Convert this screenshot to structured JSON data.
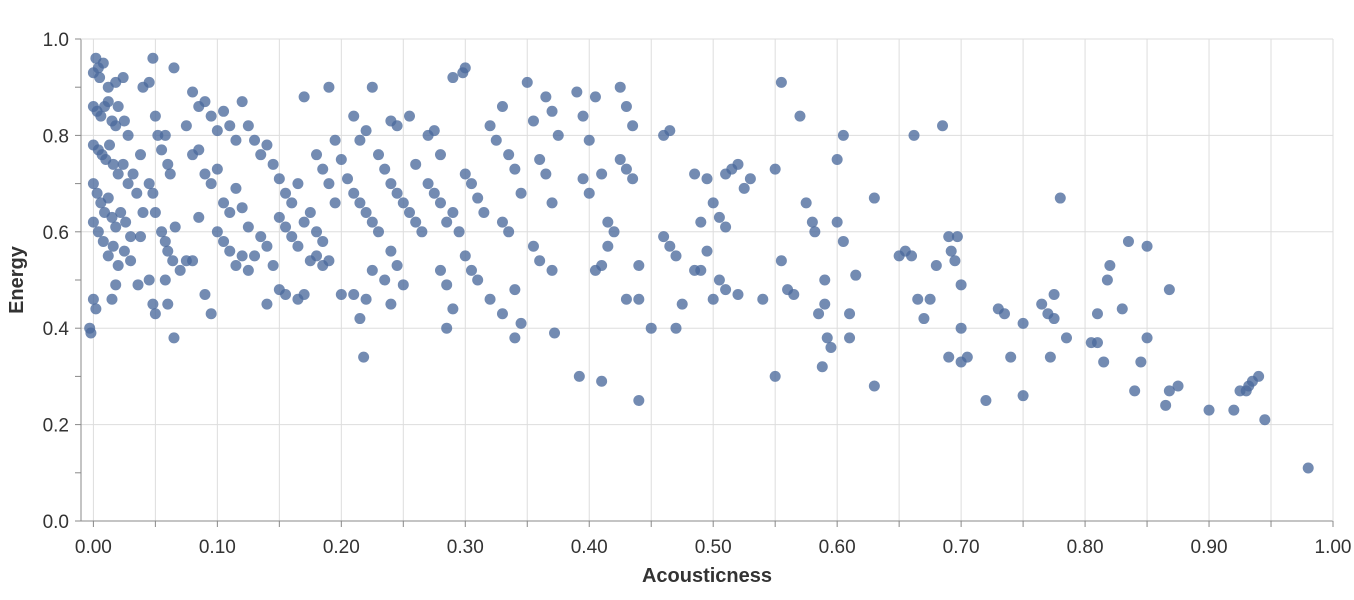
{
  "chart_data": {
    "type": "scatter",
    "xlabel": "Acousticness",
    "ylabel": "Energy",
    "xlim": [
      -0.01,
      1.0
    ],
    "ylim": [
      0.0,
      1.0
    ],
    "x_ticks": [
      "0.00",
      "0.10",
      "0.20",
      "0.30",
      "0.40",
      "0.50",
      "0.60",
      "0.70",
      "0.80",
      "0.90",
      "1.00"
    ],
    "y_ticks": [
      "0.0",
      "0.2",
      "0.4",
      "0.6",
      "0.8",
      "1.0"
    ],
    "grid": true,
    "point_color": "#4c6a9c",
    "points": [
      [
        0.002,
        0.96
      ],
      [
        0.004,
        0.94
      ],
      [
        0.0,
        0.93
      ],
      [
        0.005,
        0.92
      ],
      [
        0.008,
        0.95
      ],
      [
        0.012,
        0.9
      ],
      [
        0.018,
        0.91
      ],
      [
        0.024,
        0.92
      ],
      [
        0.0,
        0.86
      ],
      [
        0.003,
        0.85
      ],
      [
        0.006,
        0.84
      ],
      [
        0.009,
        0.86
      ],
      [
        0.012,
        0.87
      ],
      [
        0.015,
        0.83
      ],
      [
        0.018,
        0.82
      ],
      [
        0.02,
        0.86
      ],
      [
        0.025,
        0.83
      ],
      [
        0.028,
        0.8
      ],
      [
        0.0,
        0.78
      ],
      [
        0.004,
        0.77
      ],
      [
        0.007,
        0.76
      ],
      [
        0.01,
        0.75
      ],
      [
        0.013,
        0.78
      ],
      [
        0.016,
        0.74
      ],
      [
        0.02,
        0.72
      ],
      [
        0.024,
        0.74
      ],
      [
        0.028,
        0.7
      ],
      [
        0.032,
        0.72
      ],
      [
        0.0,
        0.7
      ],
      [
        0.003,
        0.68
      ],
      [
        0.006,
        0.66
      ],
      [
        0.009,
        0.64
      ],
      [
        0.012,
        0.67
      ],
      [
        0.015,
        0.63
      ],
      [
        0.018,
        0.61
      ],
      [
        0.022,
        0.64
      ],
      [
        0.026,
        0.62
      ],
      [
        0.03,
        0.59
      ],
      [
        0.0,
        0.62
      ],
      [
        0.004,
        0.6
      ],
      [
        0.008,
        0.58
      ],
      [
        0.012,
        0.55
      ],
      [
        0.016,
        0.57
      ],
      [
        0.02,
        0.53
      ],
      [
        0.025,
        0.56
      ],
      [
        0.035,
        0.68
      ],
      [
        0.038,
        0.76
      ],
      [
        0.04,
        0.64
      ],
      [
        -0.003,
        0.4
      ],
      [
        -0.002,
        0.39
      ],
      [
        0.0,
        0.46
      ],
      [
        0.002,
        0.44
      ],
      [
        0.015,
        0.46
      ],
      [
        0.018,
        0.49
      ],
      [
        0.03,
        0.54
      ],
      [
        0.036,
        0.49
      ],
      [
        0.038,
        0.59
      ],
      [
        0.04,
        0.9
      ],
      [
        0.045,
        0.91
      ],
      [
        0.048,
        0.96
      ],
      [
        0.065,
        0.94
      ],
      [
        0.05,
        0.84
      ],
      [
        0.052,
        0.8
      ],
      [
        0.055,
        0.77
      ],
      [
        0.058,
        0.8
      ],
      [
        0.06,
        0.74
      ],
      [
        0.062,
        0.72
      ],
      [
        0.045,
        0.7
      ],
      [
        0.048,
        0.68
      ],
      [
        0.05,
        0.64
      ],
      [
        0.055,
        0.6
      ],
      [
        0.058,
        0.58
      ],
      [
        0.06,
        0.56
      ],
      [
        0.064,
        0.54
      ],
      [
        0.066,
        0.61
      ],
      [
        0.07,
        0.52
      ],
      [
        0.075,
        0.54
      ],
      [
        0.045,
        0.5
      ],
      [
        0.048,
        0.45
      ],
      [
        0.05,
        0.43
      ],
      [
        0.058,
        0.5
      ],
      [
        0.06,
        0.45
      ],
      [
        0.065,
        0.38
      ],
      [
        0.08,
        0.54
      ],
      [
        0.085,
        0.63
      ],
      [
        0.09,
        0.47
      ],
      [
        0.095,
        0.43
      ],
      [
        0.075,
        0.82
      ],
      [
        0.08,
        0.89
      ],
      [
        0.085,
        0.86
      ],
      [
        0.09,
        0.87
      ],
      [
        0.095,
        0.84
      ],
      [
        0.1,
        0.81
      ],
      [
        0.105,
        0.85
      ],
      [
        0.11,
        0.82
      ],
      [
        0.115,
        0.79
      ],
      [
        0.12,
        0.87
      ],
      [
        0.08,
        0.76
      ],
      [
        0.085,
        0.77
      ],
      [
        0.09,
        0.72
      ],
      [
        0.095,
        0.7
      ],
      [
        0.1,
        0.73
      ],
      [
        0.105,
        0.66
      ],
      [
        0.11,
        0.64
      ],
      [
        0.115,
        0.69
      ],
      [
        0.12,
        0.65
      ],
      [
        0.125,
        0.61
      ],
      [
        0.1,
        0.6
      ],
      [
        0.105,
        0.58
      ],
      [
        0.11,
        0.56
      ],
      [
        0.115,
        0.53
      ],
      [
        0.12,
        0.55
      ],
      [
        0.125,
        0.52
      ],
      [
        0.13,
        0.55
      ],
      [
        0.135,
        0.59
      ],
      [
        0.14,
        0.57
      ],
      [
        0.145,
        0.53
      ],
      [
        0.125,
        0.82
      ],
      [
        0.13,
        0.79
      ],
      [
        0.135,
        0.76
      ],
      [
        0.14,
        0.78
      ],
      [
        0.145,
        0.74
      ],
      [
        0.15,
        0.71
      ],
      [
        0.155,
        0.68
      ],
      [
        0.16,
        0.66
      ],
      [
        0.165,
        0.7
      ],
      [
        0.17,
        0.88
      ],
      [
        0.15,
        0.63
      ],
      [
        0.155,
        0.61
      ],
      [
        0.16,
        0.59
      ],
      [
        0.165,
        0.57
      ],
      [
        0.17,
        0.62
      ],
      [
        0.175,
        0.64
      ],
      [
        0.18,
        0.6
      ],
      [
        0.185,
        0.58
      ],
      [
        0.19,
        0.54
      ],
      [
        0.195,
        0.66
      ],
      [
        0.14,
        0.45
      ],
      [
        0.15,
        0.48
      ],
      [
        0.155,
        0.47
      ],
      [
        0.165,
        0.46
      ],
      [
        0.17,
        0.47
      ],
      [
        0.175,
        0.54
      ],
      [
        0.18,
        0.55
      ],
      [
        0.185,
        0.53
      ],
      [
        0.19,
        0.9
      ],
      [
        0.195,
        0.79
      ],
      [
        0.18,
        0.76
      ],
      [
        0.185,
        0.73
      ],
      [
        0.19,
        0.7
      ],
      [
        0.2,
        0.75
      ],
      [
        0.205,
        0.71
      ],
      [
        0.21,
        0.68
      ],
      [
        0.215,
        0.66
      ],
      [
        0.22,
        0.64
      ],
      [
        0.225,
        0.62
      ],
      [
        0.23,
        0.6
      ],
      [
        0.2,
        0.47
      ],
      [
        0.21,
        0.47
      ],
      [
        0.215,
        0.42
      ],
      [
        0.22,
        0.46
      ],
      [
        0.225,
        0.52
      ],
      [
        0.218,
        0.34
      ],
      [
        0.225,
        0.9
      ],
      [
        0.21,
        0.84
      ],
      [
        0.215,
        0.79
      ],
      [
        0.22,
        0.81
      ],
      [
        0.23,
        0.76
      ],
      [
        0.235,
        0.73
      ],
      [
        0.24,
        0.7
      ],
      [
        0.245,
        0.68
      ],
      [
        0.25,
        0.66
      ],
      [
        0.255,
        0.64
      ],
      [
        0.26,
        0.62
      ],
      [
        0.265,
        0.6
      ],
      [
        0.24,
        0.56
      ],
      [
        0.245,
        0.53
      ],
      [
        0.235,
        0.5
      ],
      [
        0.24,
        0.45
      ],
      [
        0.25,
        0.49
      ],
      [
        0.255,
        0.84
      ],
      [
        0.24,
        0.83
      ],
      [
        0.245,
        0.82
      ],
      [
        0.26,
        0.74
      ],
      [
        0.27,
        0.8
      ],
      [
        0.275,
        0.81
      ],
      [
        0.28,
        0.76
      ],
      [
        0.27,
        0.7
      ],
      [
        0.275,
        0.68
      ],
      [
        0.28,
        0.66
      ],
      [
        0.285,
        0.62
      ],
      [
        0.29,
        0.64
      ],
      [
        0.295,
        0.6
      ],
      [
        0.28,
        0.52
      ],
      [
        0.285,
        0.49
      ],
      [
        0.29,
        0.44
      ],
      [
        0.285,
        0.4
      ],
      [
        0.29,
        0.92
      ],
      [
        0.298,
        0.93
      ],
      [
        0.3,
        0.94
      ],
      [
        0.3,
        0.72
      ],
      [
        0.305,
        0.7
      ],
      [
        0.31,
        0.67
      ],
      [
        0.315,
        0.64
      ],
      [
        0.3,
        0.55
      ],
      [
        0.305,
        0.52
      ],
      [
        0.31,
        0.5
      ],
      [
        0.32,
        0.82
      ],
      [
        0.325,
        0.79
      ],
      [
        0.33,
        0.86
      ],
      [
        0.335,
        0.76
      ],
      [
        0.34,
        0.73
      ],
      [
        0.345,
        0.68
      ],
      [
        0.33,
        0.62
      ],
      [
        0.335,
        0.6
      ],
      [
        0.32,
        0.46
      ],
      [
        0.33,
        0.43
      ],
      [
        0.34,
        0.48
      ],
      [
        0.345,
        0.41
      ],
      [
        0.34,
        0.38
      ],
      [
        0.35,
        0.91
      ],
      [
        0.355,
        0.83
      ],
      [
        0.36,
        0.75
      ],
      [
        0.365,
        0.72
      ],
      [
        0.37,
        0.66
      ],
      [
        0.355,
        0.57
      ],
      [
        0.36,
        0.54
      ],
      [
        0.365,
        0.88
      ],
      [
        0.37,
        0.85
      ],
      [
        0.375,
        0.8
      ],
      [
        0.37,
        0.52
      ],
      [
        0.372,
        0.39
      ],
      [
        0.39,
        0.89
      ],
      [
        0.395,
        0.84
      ],
      [
        0.4,
        0.79
      ],
      [
        0.395,
        0.71
      ],
      [
        0.4,
        0.68
      ],
      [
        0.392,
        0.3
      ],
      [
        0.41,
        0.29
      ],
      [
        0.405,
        0.88
      ],
      [
        0.41,
        0.72
      ],
      [
        0.415,
        0.62
      ],
      [
        0.42,
        0.6
      ],
      [
        0.415,
        0.57
      ],
      [
        0.41,
        0.53
      ],
      [
        0.405,
        0.52
      ],
      [
        0.425,
        0.9
      ],
      [
        0.43,
        0.86
      ],
      [
        0.435,
        0.82
      ],
      [
        0.425,
        0.75
      ],
      [
        0.43,
        0.73
      ],
      [
        0.435,
        0.71
      ],
      [
        0.43,
        0.46
      ],
      [
        0.44,
        0.46
      ],
      [
        0.44,
        0.53
      ],
      [
        0.44,
        0.25
      ],
      [
        0.45,
        0.4
      ],
      [
        0.46,
        0.8
      ],
      [
        0.465,
        0.81
      ],
      [
        0.46,
        0.59
      ],
      [
        0.465,
        0.57
      ],
      [
        0.47,
        0.55
      ],
      [
        0.47,
        0.4
      ],
      [
        0.475,
        0.45
      ],
      [
        0.485,
        0.52
      ],
      [
        0.49,
        0.52
      ],
      [
        0.495,
        0.56
      ],
      [
        0.485,
        0.72
      ],
      [
        0.49,
        0.62
      ],
      [
        0.495,
        0.71
      ],
      [
        0.5,
        0.66
      ],
      [
        0.505,
        0.63
      ],
      [
        0.51,
        0.61
      ],
      [
        0.5,
        0.46
      ],
      [
        0.505,
        0.5
      ],
      [
        0.51,
        0.48
      ],
      [
        0.52,
        0.47
      ],
      [
        0.51,
        0.72
      ],
      [
        0.515,
        0.73
      ],
      [
        0.52,
        0.74
      ],
      [
        0.525,
        0.69
      ],
      [
        0.53,
        0.71
      ],
      [
        0.54,
        0.46
      ],
      [
        0.55,
        0.3
      ],
      [
        0.55,
        0.73
      ],
      [
        0.555,
        0.91
      ],
      [
        0.555,
        0.54
      ],
      [
        0.56,
        0.48
      ],
      [
        0.565,
        0.47
      ],
      [
        0.57,
        0.84
      ],
      [
        0.575,
        0.66
      ],
      [
        0.58,
        0.62
      ],
      [
        0.582,
        0.6
      ],
      [
        0.585,
        0.43
      ],
      [
        0.59,
        0.5
      ],
      [
        0.59,
        0.45
      ],
      [
        0.595,
        0.36
      ],
      [
        0.588,
        0.32
      ],
      [
        0.592,
        0.38
      ],
      [
        0.6,
        0.62
      ],
      [
        0.6,
        0.75
      ],
      [
        0.605,
        0.8
      ],
      [
        0.605,
        0.58
      ],
      [
        0.61,
        0.43
      ],
      [
        0.61,
        0.38
      ],
      [
        0.615,
        0.51
      ],
      [
        0.63,
        0.67
      ],
      [
        0.63,
        0.28
      ],
      [
        0.65,
        0.55
      ],
      [
        0.655,
        0.56
      ],
      [
        0.66,
        0.55
      ],
      [
        0.665,
        0.46
      ],
      [
        0.662,
        0.8
      ],
      [
        0.67,
        0.42
      ],
      [
        0.675,
        0.46
      ],
      [
        0.68,
        0.53
      ],
      [
        0.685,
        0.82
      ],
      [
        0.69,
        0.59
      ],
      [
        0.692,
        0.56
      ],
      [
        0.695,
        0.54
      ],
      [
        0.697,
        0.59
      ],
      [
        0.69,
        0.34
      ],
      [
        0.7,
        0.49
      ],
      [
        0.7,
        0.4
      ],
      [
        0.7,
        0.33
      ],
      [
        0.705,
        0.34
      ],
      [
        0.72,
        0.25
      ],
      [
        0.73,
        0.44
      ],
      [
        0.735,
        0.43
      ],
      [
        0.74,
        0.34
      ],
      [
        0.75,
        0.41
      ],
      [
        0.75,
        0.26
      ],
      [
        0.765,
        0.45
      ],
      [
        0.77,
        0.43
      ],
      [
        0.775,
        0.47
      ],
      [
        0.775,
        0.42
      ],
      [
        0.772,
        0.34
      ],
      [
        0.78,
        0.67
      ],
      [
        0.785,
        0.38
      ],
      [
        0.805,
        0.37
      ],
      [
        0.81,
        0.37
      ],
      [
        0.81,
        0.43
      ],
      [
        0.815,
        0.33
      ],
      [
        0.818,
        0.5
      ],
      [
        0.82,
        0.53
      ],
      [
        0.83,
        0.44
      ],
      [
        0.835,
        0.58
      ],
      [
        0.84,
        0.27
      ],
      [
        0.845,
        0.33
      ],
      [
        0.85,
        0.57
      ],
      [
        0.85,
        0.38
      ],
      [
        0.865,
        0.24
      ],
      [
        0.868,
        0.27
      ],
      [
        0.868,
        0.48
      ],
      [
        0.875,
        0.28
      ],
      [
        0.9,
        0.23
      ],
      [
        0.92,
        0.23
      ],
      [
        0.925,
        0.27
      ],
      [
        0.93,
        0.27
      ],
      [
        0.932,
        0.28
      ],
      [
        0.935,
        0.29
      ],
      [
        0.94,
        0.3
      ],
      [
        0.945,
        0.21
      ],
      [
        0.98,
        0.11
      ]
    ]
  }
}
